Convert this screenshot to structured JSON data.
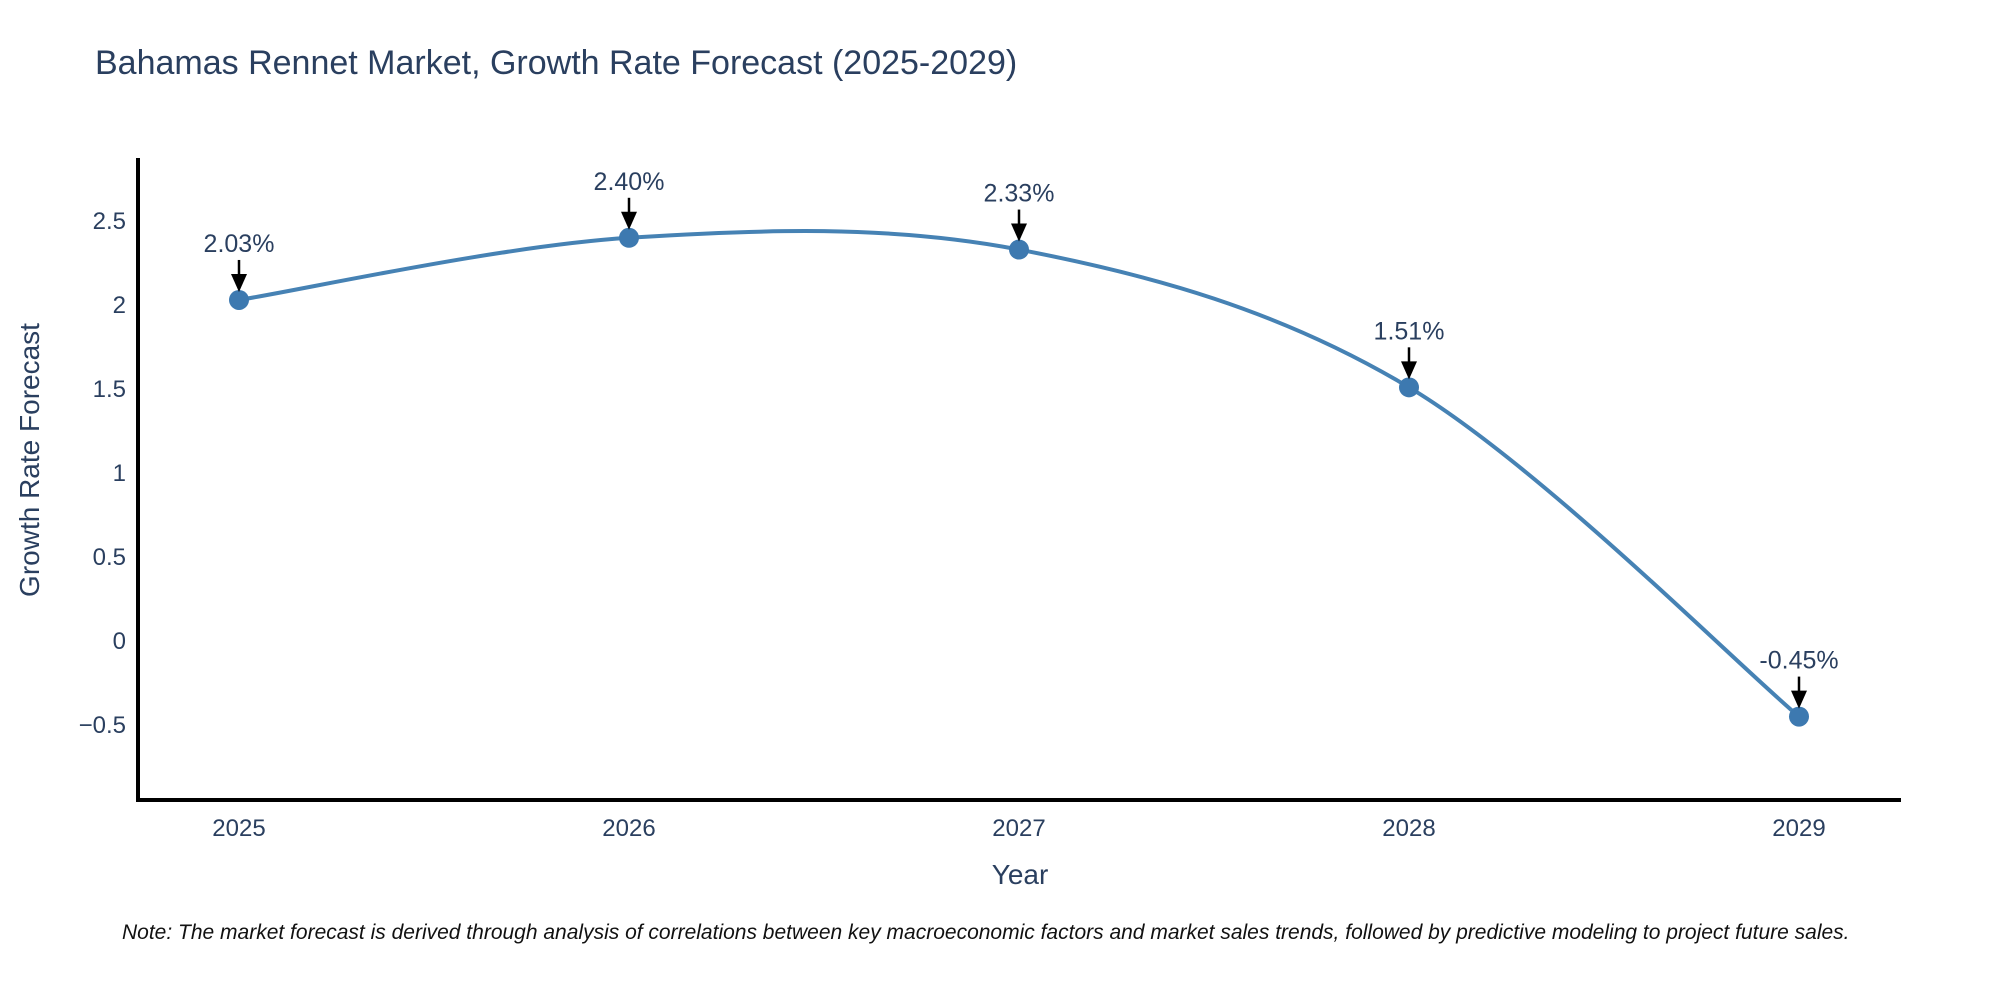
{
  "title": "Bahamas Rennet Market, Growth Rate Forecast (2025-2029)",
  "note": "Note: The market forecast is derived through analysis of correlations between key macroeconomic factors and market sales trends, followed by predictive modeling to project future sales.",
  "chart_data": {
    "type": "line",
    "title": "Bahamas Rennet Market, Growth Rate Forecast (2025-2029)",
    "xlabel": "Year",
    "ylabel": "Growth Rate Forecast",
    "x": [
      "2025",
      "2026",
      "2027",
      "2028",
      "2029"
    ],
    "series": [
      {
        "name": "Growth Rate Forecast",
        "values": [
          2.03,
          2.4,
          2.33,
          1.51,
          -0.45
        ]
      }
    ],
    "data_labels": [
      "2.03%",
      "2.40%",
      "2.33%",
      "1.51%",
      "-0.45%"
    ],
    "line_shape": "spline",
    "markers": true,
    "grid": false,
    "legend_position": "none",
    "yticks": [
      -0.5,
      0,
      0.5,
      1,
      1.5,
      2,
      2.5
    ],
    "ylim": [
      -0.95,
      2.87
    ],
    "colors": {
      "line": "#4682b4",
      "marker": "#3d79b0",
      "axis": "#000000",
      "tick_text": "#2a3f5f",
      "annotation_text": "#2a3f5f",
      "arrow": "#000000",
      "title_text": "#2a3f5f",
      "note_text": "#111111",
      "background": "#ffffff"
    }
  }
}
